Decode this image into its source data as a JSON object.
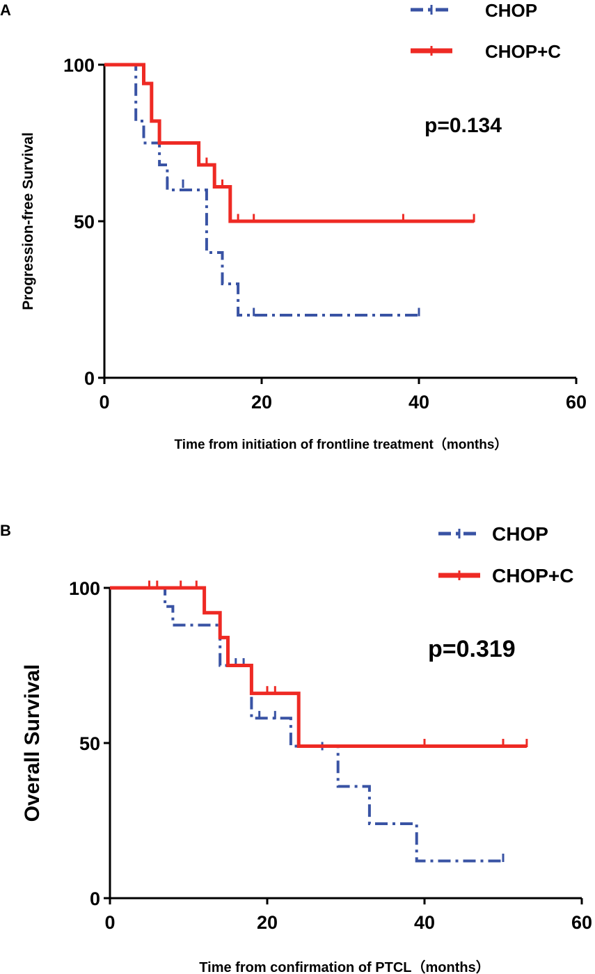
{
  "chart_data": [
    {
      "panel": "A",
      "type": "line",
      "subtype": "kaplan-meier",
      "xlabel": "Time from initiation of frontline treatment（months）",
      "ylabel": "Progression-free Survival",
      "xlim": [
        0,
        60
      ],
      "ylim": [
        0,
        100
      ],
      "xticks": [
        "0",
        "20",
        "40",
        "60"
      ],
      "yticks": [
        "0",
        "50",
        "100"
      ],
      "annotation": "p=0.134",
      "legend_position": "top-right",
      "series": [
        {
          "name": "CHOP",
          "color": "#3953a4",
          "style": "dash-dot",
          "steps": [
            [
              0,
              100
            ],
            [
              4,
              100
            ],
            [
              4,
              82
            ],
            [
              5,
              82
            ],
            [
              5,
              75
            ],
            [
              6,
              75
            ],
            [
              6,
              75
            ],
            [
              7,
              75
            ],
            [
              7,
              68
            ],
            [
              8,
              68
            ],
            [
              8,
              60
            ],
            [
              13,
              60
            ],
            [
              13,
              40
            ],
            [
              15,
              40
            ],
            [
              15,
              30
            ],
            [
              17,
              30
            ],
            [
              17,
              20
            ],
            [
              40,
              20
            ]
          ],
          "censors": [
            [
              8,
              63
            ],
            [
              10,
              62
            ],
            [
              17,
              29
            ],
            [
              19,
              21
            ],
            [
              40,
              21
            ]
          ]
        },
        {
          "name": "CHOP+C",
          "color": "#ee2a24",
          "style": "solid",
          "steps": [
            [
              0,
              100
            ],
            [
              5,
              100
            ],
            [
              5,
              94
            ],
            [
              6,
              94
            ],
            [
              6,
              82
            ],
            [
              7,
              82
            ],
            [
              7,
              75
            ],
            [
              12,
              75
            ],
            [
              12,
              68
            ],
            [
              14,
              68
            ],
            [
              14,
              61
            ],
            [
              16,
              61
            ],
            [
              16,
              50
            ],
            [
              47,
              50
            ]
          ],
          "censors": [
            [
              13,
              69
            ],
            [
              15,
              62
            ],
            [
              17,
              51
            ],
            [
              19,
              51
            ],
            [
              38,
              51
            ],
            [
              47,
              51
            ]
          ]
        }
      ]
    },
    {
      "panel": "B",
      "type": "line",
      "subtype": "kaplan-meier",
      "xlabel": "Time from confirmation of PTCL（months）",
      "ylabel": "Overall Survival",
      "xlim": [
        0,
        60
      ],
      "ylim": [
        0,
        100
      ],
      "xticks": [
        "0",
        "20",
        "40",
        "60"
      ],
      "yticks": [
        "0",
        "50",
        "100"
      ],
      "annotation": "p=0.319",
      "legend_position": "top-right",
      "series": [
        {
          "name": "CHOP",
          "color": "#3953a4",
          "style": "dash-dot",
          "steps": [
            [
              0,
              100
            ],
            [
              7,
              100
            ],
            [
              7,
              94
            ],
            [
              8,
              94
            ],
            [
              8,
              88
            ],
            [
              14,
              88
            ],
            [
              14,
              75
            ],
            [
              18,
              75
            ],
            [
              18,
              58
            ],
            [
              23,
              58
            ],
            [
              23,
              49
            ],
            [
              29,
              49
            ],
            [
              29,
              36
            ],
            [
              33,
              36
            ],
            [
              33,
              24
            ],
            [
              39,
              24
            ],
            [
              39,
              12
            ],
            [
              50,
              12
            ]
          ],
          "censors": [
            [
              15,
              76
            ],
            [
              16,
              76
            ],
            [
              17,
              76
            ],
            [
              19,
              59
            ],
            [
              21,
              59
            ],
            [
              27,
              49
            ],
            [
              50,
              13
            ]
          ]
        },
        {
          "name": "CHOP+C",
          "color": "#ee2a24",
          "style": "solid",
          "steps": [
            [
              0,
              100
            ],
            [
              12,
              100
            ],
            [
              12,
              92
            ],
            [
              14,
              92
            ],
            [
              14,
              84
            ],
            [
              15,
              84
            ],
            [
              15,
              75
            ],
            [
              18,
              75
            ],
            [
              18,
              66
            ],
            [
              24,
              66
            ],
            [
              24,
              49
            ],
            [
              53,
              49
            ]
          ],
          "censors": [
            [
              5,
              101
            ],
            [
              6,
              101
            ],
            [
              9,
              101
            ],
            [
              11,
              101
            ],
            [
              20,
              67
            ],
            [
              21,
              67
            ],
            [
              40,
              50
            ],
            [
              50,
              50
            ],
            [
              53,
              50
            ]
          ]
        }
      ]
    }
  ]
}
